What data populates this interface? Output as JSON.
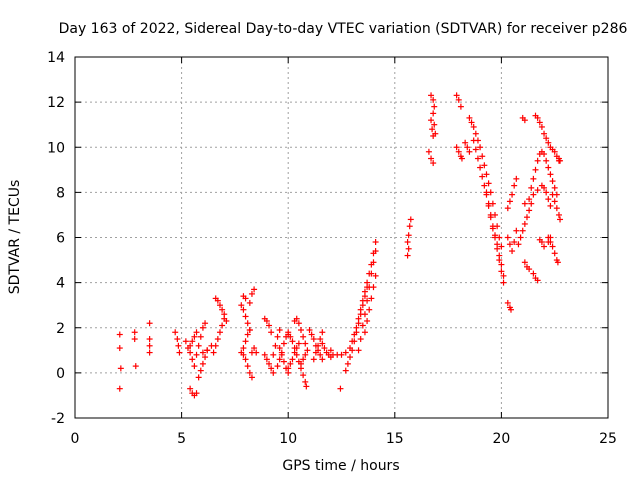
{
  "chart_data": {
    "type": "scatter",
    "title": "Day 163 of 2022, Sidereal Day-to-day VTEC variation (SDTVAR) for receiver p286",
    "xlabel": "GPS time / hours",
    "ylabel": "SDTVAR / TECUs",
    "xlim": [
      0,
      25
    ],
    "ylim": [
      -2,
      14
    ],
    "xticks": [
      "0",
      "5",
      "10",
      "15",
      "20",
      "25"
    ],
    "yticks": [
      "-2",
      "0",
      "2",
      "4",
      "6",
      "8",
      "10",
      "12",
      "14"
    ],
    "grid": true,
    "marker": "+",
    "color": "#ff0000",
    "tracks": [
      [
        [
          2.1,
          1.7
        ],
        [
          2.1,
          1.1
        ],
        [
          2.15,
          0.2
        ],
        [
          2.1,
          -0.7
        ]
      ],
      [
        [
          2.8,
          1.8
        ],
        [
          2.8,
          1.5
        ],
        [
          2.85,
          0.3
        ]
      ],
      [
        [
          3.5,
          2.2
        ],
        [
          3.5,
          1.5
        ],
        [
          3.5,
          1.2
        ],
        [
          3.5,
          0.9
        ]
      ],
      [
        [
          4.7,
          1.8
        ],
        [
          4.8,
          1.5
        ],
        [
          4.85,
          1.2
        ],
        [
          4.9,
          0.9
        ]
      ],
      [
        [
          5.2,
          1.4
        ],
        [
          5.3,
          1.1
        ],
        [
          5.4,
          0.9
        ],
        [
          5.5,
          0.6
        ],
        [
          5.6,
          0.3
        ]
      ],
      [
        [
          5.4,
          -0.7
        ],
        [
          5.5,
          -0.9
        ],
        [
          5.6,
          -1.0
        ],
        [
          5.7,
          -0.9
        ]
      ],
      [
        [
          5.4,
          1.2
        ],
        [
          5.5,
          1.4
        ],
        [
          5.6,
          1.6
        ],
        [
          5.7,
          1.8
        ]
      ],
      [
        [
          5.7,
          0.8
        ],
        [
          5.8,
          1.2
        ],
        [
          5.9,
          1.6
        ],
        [
          6.0,
          2.0
        ],
        [
          6.1,
          2.2
        ]
      ],
      [
        [
          5.8,
          -0.2
        ],
        [
          5.9,
          0.1
        ],
        [
          6.0,
          0.4
        ],
        [
          6.1,
          0.7
        ],
        [
          6.2,
          1.0
        ]
      ],
      [
        [
          6.0,
          0.9
        ],
        [
          6.2,
          1.0
        ],
        [
          6.4,
          1.2
        ]
      ],
      [
        [
          6.5,
          0.9
        ],
        [
          6.6,
          1.2
        ],
        [
          6.7,
          1.5
        ],
        [
          6.8,
          1.8
        ],
        [
          6.9,
          2.1
        ],
        [
          7.0,
          2.4
        ]
      ],
      [
        [
          6.6,
          3.3
        ],
        [
          6.7,
          3.2
        ],
        [
          6.8,
          3.0
        ],
        [
          6.9,
          2.8
        ],
        [
          7.0,
          2.6
        ],
        [
          7.1,
          2.3
        ]
      ],
      [
        [
          7.8,
          0.9
        ],
        [
          7.9,
          1.1
        ],
        [
          8.0,
          1.4
        ],
        [
          8.1,
          1.7
        ],
        [
          8.2,
          1.9
        ]
      ],
      [
        [
          7.8,
          3.0
        ],
        [
          7.9,
          2.8
        ],
        [
          8.0,
          2.5
        ],
        [
          8.1,
          2.2
        ],
        [
          8.2,
          1.9
        ]
      ],
      [
        [
          7.9,
          3.4
        ],
        [
          8.0,
          3.3
        ],
        [
          8.2,
          3.1
        ],
        [
          8.3,
          3.5
        ],
        [
          8.4,
          3.7
        ]
      ],
      [
        [
          7.9,
          0.8
        ],
        [
          8.0,
          0.6
        ],
        [
          8.1,
          0.3
        ],
        [
          8.2,
          0.0
        ],
        [
          8.3,
          -0.2
        ]
      ],
      [
        [
          8.3,
          0.9
        ],
        [
          8.4,
          1.1
        ],
        [
          8.5,
          0.9
        ]
      ],
      [
        [
          8.9,
          2.4
        ],
        [
          9.0,
          2.3
        ],
        [
          9.1,
          2.1
        ],
        [
          9.2,
          1.8
        ]
      ],
      [
        [
          8.9,
          0.8
        ],
        [
          9.0,
          0.6
        ],
        [
          9.1,
          0.4
        ],
        [
          9.2,
          0.2
        ],
        [
          9.3,
          0.0
        ]
      ],
      [
        [
          9.3,
          0.8
        ],
        [
          9.4,
          1.2
        ],
        [
          9.5,
          1.6
        ],
        [
          9.6,
          1.9
        ]
      ],
      [
        [
          9.5,
          0.3
        ],
        [
          9.6,
          0.6
        ],
        [
          9.7,
          0.9
        ],
        [
          9.8,
          1.3
        ],
        [
          9.9,
          1.6
        ],
        [
          10.0,
          1.8
        ]
      ],
      [
        [
          9.6,
          1.1
        ],
        [
          9.7,
          0.8
        ],
        [
          9.8,
          0.5
        ],
        [
          9.9,
          0.2
        ],
        [
          10.0,
          0.0
        ]
      ],
      [
        [
          10.0,
          1.7
        ],
        [
          10.1,
          1.6
        ],
        [
          10.2,
          1.4
        ],
        [
          10.3,
          1.1
        ],
        [
          10.4,
          0.8
        ],
        [
          10.5,
          0.5
        ],
        [
          10.6,
          0.2
        ],
        [
          10.7,
          -0.1
        ],
        [
          10.8,
          -0.4
        ],
        [
          10.85,
          -0.6
        ]
      ],
      [
        [
          10.0,
          0.2
        ],
        [
          10.1,
          0.4
        ],
        [
          10.2,
          0.6
        ],
        [
          10.3,
          0.9
        ],
        [
          10.4,
          1.1
        ],
        [
          10.5,
          1.3
        ]
      ],
      [
        [
          10.3,
          2.3
        ],
        [
          10.4,
          2.4
        ],
        [
          10.5,
          2.2
        ],
        [
          10.6,
          1.9
        ],
        [
          10.7,
          1.6
        ],
        [
          10.8,
          1.3
        ]
      ],
      [
        [
          10.6,
          0.4
        ],
        [
          10.7,
          0.6
        ],
        [
          10.8,
          0.8
        ],
        [
          10.9,
          1.0
        ]
      ],
      [
        [
          11.0,
          1.9
        ],
        [
          11.1,
          1.7
        ],
        [
          11.2,
          1.5
        ],
        [
          11.3,
          1.2
        ],
        [
          11.4,
          1.0
        ],
        [
          11.5,
          0.8
        ],
        [
          11.6,
          0.6
        ]
      ],
      [
        [
          11.2,
          0.6
        ],
        [
          11.3,
          0.9
        ],
        [
          11.4,
          1.2
        ],
        [
          11.5,
          1.5
        ],
        [
          11.6,
          1.8
        ]
      ],
      [
        [
          11.6,
          1.3
        ],
        [
          11.7,
          1.1
        ],
        [
          11.8,
          0.9
        ],
        [
          11.9,
          0.8
        ],
        [
          12.0,
          0.7
        ]
      ],
      [
        [
          12.0,
          1.0
        ],
        [
          12.1,
          0.8
        ],
        [
          12.3,
          0.8
        ],
        [
          12.5,
          0.8
        ],
        [
          12.7,
          0.9
        ]
      ],
      [
        [
          12.45,
          -0.7
        ]
      ],
      [
        [
          12.7,
          0.1
        ],
        [
          12.8,
          0.4
        ],
        [
          12.9,
          0.7
        ],
        [
          13.0,
          1.0
        ],
        [
          13.1,
          1.4
        ],
        [
          13.2,
          1.8
        ],
        [
          13.3,
          2.2
        ],
        [
          13.4,
          2.6
        ],
        [
          13.5,
          3.0
        ],
        [
          13.6,
          3.4
        ],
        [
          13.7,
          3.8
        ]
      ],
      [
        [
          12.9,
          1.1
        ],
        [
          13.0,
          1.4
        ],
        [
          13.1,
          1.7
        ],
        [
          13.2,
          2.0
        ],
        [
          13.3,
          2.4
        ],
        [
          13.4,
          2.8
        ],
        [
          13.5,
          3.2
        ],
        [
          13.6,
          3.6
        ],
        [
          13.7,
          4.0
        ],
        [
          13.8,
          4.4
        ],
        [
          13.9,
          4.8
        ],
        [
          14.0,
          5.3
        ],
        [
          14.1,
          5.8
        ]
      ],
      [
        [
          13.3,
          1.0
        ],
        [
          13.4,
          1.5
        ],
        [
          13.5,
          2.1
        ],
        [
          13.6,
          2.6
        ],
        [
          13.7,
          3.2
        ],
        [
          13.8,
          3.8
        ],
        [
          13.9,
          4.4
        ],
        [
          14.0,
          4.9
        ],
        [
          14.1,
          5.4
        ]
      ],
      [
        [
          13.6,
          1.8
        ],
        [
          13.7,
          2.3
        ],
        [
          13.8,
          2.8
        ],
        [
          13.9,
          3.3
        ],
        [
          14.0,
          3.8
        ],
        [
          14.1,
          4.3
        ]
      ],
      [
        [
          15.6,
          5.2
        ],
        [
          15.65,
          5.5
        ],
        [
          15.6,
          5.8
        ],
        [
          15.65,
          6.1
        ],
        [
          15.7,
          6.5
        ],
        [
          15.75,
          6.8
        ]
      ],
      [
        [
          16.7,
          12.3
        ],
        [
          16.8,
          12.1
        ],
        [
          16.85,
          11.8
        ]
      ],
      [
        [
          16.7,
          11.2
        ],
        [
          16.75,
          10.8
        ],
        [
          16.8,
          10.5
        ]
      ],
      [
        [
          16.6,
          9.8
        ],
        [
          16.7,
          9.5
        ],
        [
          16.8,
          9.3
        ]
      ],
      [
        [
          16.8,
          11.5
        ],
        [
          16.85,
          11.0
        ],
        [
          16.9,
          10.6
        ]
      ],
      [
        [
          17.9,
          12.3
        ],
        [
          18.0,
          12.1
        ],
        [
          18.1,
          11.8
        ]
      ],
      [
        [
          17.9,
          10.0
        ],
        [
          18.0,
          9.8
        ],
        [
          18.1,
          9.6
        ],
        [
          18.15,
          9.5
        ]
      ],
      [
        [
          18.5,
          11.3
        ],
        [
          18.6,
          11.1
        ],
        [
          18.7,
          10.9
        ],
        [
          18.8,
          10.6
        ],
        [
          18.9,
          10.3
        ],
        [
          19.0,
          10.0
        ],
        [
          19.1,
          9.6
        ],
        [
          19.2,
          9.2
        ],
        [
          19.3,
          8.8
        ],
        [
          19.4,
          8.4
        ],
        [
          19.5,
          8.0
        ],
        [
          19.6,
          7.5
        ],
        [
          19.7,
          7.0
        ],
        [
          19.8,
          6.5
        ],
        [
          19.9,
          6.0
        ],
        [
          20.0,
          5.6
        ]
      ],
      [
        [
          18.7,
          10.3
        ],
        [
          18.8,
          9.9
        ],
        [
          18.9,
          9.5
        ],
        [
          19.0,
          9.1
        ],
        [
          19.1,
          8.7
        ],
        [
          19.2,
          8.3
        ],
        [
          19.3,
          7.9
        ],
        [
          19.4,
          7.4
        ],
        [
          19.5,
          6.9
        ],
        [
          19.6,
          6.4
        ],
        [
          19.7,
          6.0
        ],
        [
          19.8,
          5.5
        ],
        [
          19.9,
          5.0
        ],
        [
          20.0,
          4.5
        ],
        [
          20.1,
          4.0
        ]
      ],
      [
        [
          19.3,
          8.0
        ],
        [
          19.4,
          7.5
        ],
        [
          19.5,
          7.0
        ],
        [
          19.6,
          6.5
        ],
        [
          19.7,
          6.1
        ],
        [
          19.8,
          5.7
        ],
        [
          19.9,
          5.2
        ],
        [
          20.0,
          4.8
        ],
        [
          20.1,
          4.3
        ]
      ],
      [
        [
          18.3,
          10.2
        ],
        [
          18.4,
          10.0
        ],
        [
          18.5,
          9.8
        ]
      ],
      [
        [
          20.3,
          7.3
        ],
        [
          20.4,
          7.6
        ],
        [
          20.5,
          7.9
        ],
        [
          20.6,
          8.3
        ],
        [
          20.7,
          8.6
        ]
      ],
      [
        [
          20.3,
          3.1
        ],
        [
          20.4,
          2.9
        ],
        [
          20.45,
          2.8
        ]
      ],
      [
        [
          20.3,
          6.0
        ],
        [
          20.4,
          5.7
        ],
        [
          20.5,
          5.4
        ],
        [
          20.6,
          5.8
        ],
        [
          20.7,
          6.3
        ]
      ],
      [
        [
          21.0,
          11.3
        ],
        [
          21.1,
          11.2
        ]
      ],
      [
        [
          21.1,
          4.9
        ],
        [
          21.2,
          4.7
        ],
        [
          21.3,
          4.6
        ],
        [
          21.5,
          4.4
        ],
        [
          21.6,
          4.2
        ],
        [
          21.7,
          4.1
        ]
      ],
      [
        [
          20.8,
          5.7
        ],
        [
          20.9,
          6.0
        ],
        [
          21.0,
          6.3
        ],
        [
          21.1,
          6.6
        ],
        [
          21.2,
          6.9
        ],
        [
          21.3,
          7.2
        ],
        [
          21.4,
          7.5
        ]
      ],
      [
        [
          21.1,
          7.5
        ],
        [
          21.3,
          7.7
        ],
        [
          21.5,
          7.9
        ],
        [
          21.7,
          8.1
        ],
        [
          21.9,
          8.3
        ],
        [
          22.0,
          8.2
        ],
        [
          22.1,
          8.0
        ],
        [
          22.2,
          7.7
        ],
        [
          22.3,
          7.4
        ]
      ],
      [
        [
          21.4,
          8.2
        ],
        [
          21.5,
          8.6
        ],
        [
          21.6,
          9.0
        ],
        [
          21.7,
          9.4
        ],
        [
          21.8,
          9.7
        ],
        [
          21.9,
          9.8
        ],
        [
          22.0,
          9.7
        ],
        [
          22.1,
          9.4
        ],
        [
          22.2,
          9.1
        ],
        [
          22.3,
          8.8
        ],
        [
          22.4,
          8.5
        ],
        [
          22.5,
          8.2
        ],
        [
          22.6,
          7.9
        ]
      ],
      [
        [
          21.6,
          11.4
        ],
        [
          21.7,
          11.3
        ],
        [
          21.8,
          11.1
        ],
        [
          21.9,
          10.9
        ],
        [
          22.0,
          10.6
        ],
        [
          22.1,
          10.4
        ],
        [
          22.2,
          10.2
        ],
        [
          22.3,
          10.0
        ],
        [
          22.4,
          9.9
        ],
        [
          22.5,
          9.8
        ],
        [
          22.6,
          9.6
        ],
        [
          22.7,
          9.4
        ]
      ],
      [
        [
          21.8,
          5.9
        ],
        [
          21.9,
          5.8
        ],
        [
          22.0,
          5.6
        ],
        [
          22.2,
          5.8
        ],
        [
          22.3,
          6.0
        ]
      ],
      [
        [
          22.2,
          6.0
        ],
        [
          22.3,
          5.8
        ],
        [
          22.4,
          5.6
        ],
        [
          22.5,
          5.3
        ],
        [
          22.6,
          5.0
        ],
        [
          22.65,
          4.9
        ]
      ],
      [
        [
          22.4,
          7.9
        ],
        [
          22.5,
          7.6
        ],
        [
          22.6,
          7.3
        ],
        [
          22.7,
          7.0
        ],
        [
          22.75,
          6.8
        ]
      ],
      [
        [
          22.7,
          9.5
        ],
        [
          22.75,
          9.4
        ]
      ]
    ]
  }
}
